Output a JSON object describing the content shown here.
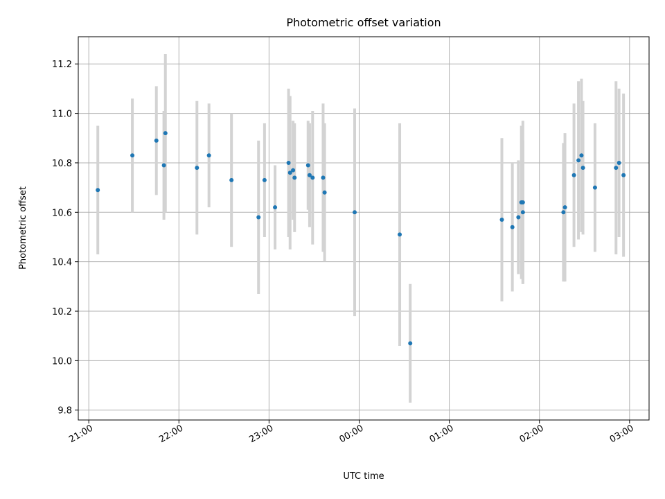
{
  "chart_data": {
    "type": "scatter",
    "title": "Photometric offset variation",
    "xlabel": "UTC time",
    "ylabel": "Photometric offset",
    "x_axis_type": "time",
    "x_tick_labels": [
      "21:00",
      "22:00",
      "23:00",
      "00:00",
      "01:00",
      "02:00",
      "03:00"
    ],
    "xlim": [
      "20:53",
      "03:13"
    ],
    "ylim": [
      9.76,
      11.31
    ],
    "y_ticks": [
      9.8,
      10.0,
      10.2,
      10.4,
      10.6,
      10.8,
      11.0,
      11.2
    ],
    "grid": true,
    "colors": {
      "point": "#1f77b4",
      "errorbar": "#d3d3d3"
    },
    "points": [
      {
        "x": "21:06",
        "y": 10.69,
        "err": 0.26
      },
      {
        "x": "21:29",
        "y": 10.83,
        "err": 0.23
      },
      {
        "x": "21:45",
        "y": 10.89,
        "err": 0.22
      },
      {
        "x": "21:50",
        "y": 10.79,
        "err": 0.22
      },
      {
        "x": "21:51",
        "y": 10.92,
        "err": 0.32
      },
      {
        "x": "22:12",
        "y": 10.78,
        "err": 0.27
      },
      {
        "x": "22:20",
        "y": 10.83,
        "err": 0.21
      },
      {
        "x": "22:35",
        "y": 10.73,
        "err": 0.27
      },
      {
        "x": "22:53",
        "y": 10.58,
        "err": 0.31
      },
      {
        "x": "22:57",
        "y": 10.73,
        "err": 0.23
      },
      {
        "x": "23:04",
        "y": 10.62,
        "err": 0.17
      },
      {
        "x": "23:13",
        "y": 10.8,
        "err": 0.3
      },
      {
        "x": "23:14",
        "y": 10.76,
        "err": 0.31
      },
      {
        "x": "23:16",
        "y": 10.77,
        "err": 0.2
      },
      {
        "x": "23:17",
        "y": 10.74,
        "err": 0.22
      },
      {
        "x": "23:26",
        "y": 10.79,
        "err": 0.18
      },
      {
        "x": "23:27",
        "y": 10.75,
        "err": 0.21
      },
      {
        "x": "23:29",
        "y": 10.74,
        "err": 0.27
      },
      {
        "x": "23:36",
        "y": 10.74,
        "err": 0.3
      },
      {
        "x": "23:37",
        "y": 10.68,
        "err": 0.28
      },
      {
        "x": "23:57",
        "y": 10.6,
        "err": 0.42
      },
      {
        "x": "00:27",
        "y": 10.51,
        "err": 0.45
      },
      {
        "x": "00:34",
        "y": 10.07,
        "err": 0.24
      },
      {
        "x": "01:35",
        "y": 10.57,
        "err": 0.33
      },
      {
        "x": "01:42",
        "y": 10.54,
        "err": 0.26
      },
      {
        "x": "01:46",
        "y": 10.58,
        "err": 0.23
      },
      {
        "x": "01:48",
        "y": 10.64,
        "err": 0.31
      },
      {
        "x": "01:49",
        "y": 10.64,
        "err": 0.33
      },
      {
        "x": "01:49",
        "y": 10.6,
        "err": 0.29
      },
      {
        "x": "02:16",
        "y": 10.6,
        "err": 0.28
      },
      {
        "x": "02:17",
        "y": 10.62,
        "err": 0.3
      },
      {
        "x": "02:23",
        "y": 10.75,
        "err": 0.29
      },
      {
        "x": "02:26",
        "y": 10.81,
        "err": 0.32
      },
      {
        "x": "02:28",
        "y": 10.83,
        "err": 0.31
      },
      {
        "x": "02:29",
        "y": 10.78,
        "err": 0.27
      },
      {
        "x": "02:37",
        "y": 10.7,
        "err": 0.26
      },
      {
        "x": "02:51",
        "y": 10.78,
        "err": 0.35
      },
      {
        "x": "02:53",
        "y": 10.8,
        "err": 0.3
      },
      {
        "x": "02:56",
        "y": 10.75,
        "err": 0.33
      }
    ]
  }
}
